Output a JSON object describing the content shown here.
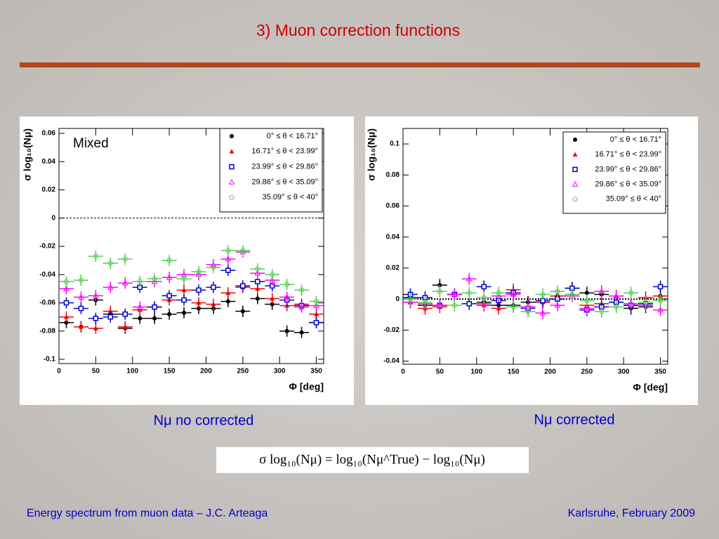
{
  "slide_title": "3) Muon correction functions",
  "captions": [
    "Nμ  no corrected",
    "Nμ corrected"
  ],
  "formula": "σ log₁₀(Nμ) = log₁₀(Nμ^True) − log₁₀(Nμ)",
  "footer": {
    "left": "Energy spectrum from muon data – J.C. Arteaga",
    "right": "Karlsruhe,  February 2009"
  },
  "chart_data": [
    {
      "type": "scatter",
      "annotation": "Mixed",
      "ylabel": "σ log₁₀(Nμ)",
      "xlabel": "Φ [deg]",
      "xlim": [
        0,
        360
      ],
      "xticks": [
        0,
        50,
        100,
        150,
        200,
        250,
        300,
        350
      ],
      "ylim": [
        -0.103,
        0.0635
      ],
      "yticks": [
        0.06,
        0.04,
        0.02,
        0,
        -0.02,
        -0.04,
        -0.06,
        -0.08,
        -0.1
      ],
      "hline": 0,
      "legend": "top-right",
      "xerr": 10,
      "yerr": 0.004,
      "x": [
        10,
        30,
        50,
        70,
        90,
        110,
        130,
        150,
        170,
        190,
        210,
        230,
        250,
        270,
        290,
        310,
        330,
        350
      ],
      "series": [
        {
          "name": "0° ≤ θ < 16.71°",
          "color": "#000000",
          "marker": "circle",
          "values": [
            -0.074,
            -0.077,
            -0.058,
            -0.068,
            -0.078,
            -0.071,
            -0.071,
            -0.068,
            -0.067,
            -0.064,
            -0.064,
            -0.059,
            -0.066,
            -0.057,
            -0.061,
            -0.08,
            -0.081,
            -0.074
          ]
        },
        {
          "name": "16.71° ≤ θ < 23.99°",
          "color": "#ee0000",
          "marker": "triangle",
          "values": [
            -0.07,
            -0.077,
            -0.078,
            -0.066,
            -0.077,
            -0.065,
            -0.063,
            -0.058,
            -0.051,
            -0.06,
            -0.061,
            -0.053,
            -0.049,
            -0.05,
            -0.057,
            -0.062,
            -0.061,
            -0.068
          ]
        },
        {
          "name": "23.99° ≤ θ < 29.86°",
          "color": "#0000cc",
          "marker": "square",
          "values": [
            -0.06,
            -0.064,
            -0.071,
            -0.07,
            -0.068,
            -0.049,
            -0.063,
            -0.055,
            -0.058,
            -0.051,
            -0.049,
            -0.037,
            -0.048,
            -0.045,
            -0.048,
            -0.058,
            -0.062,
            -0.074
          ]
        },
        {
          "name": "29.86° ≤ θ < 35.09°",
          "color": "#ff00ff",
          "marker": "open-triangle",
          "values": [
            -0.05,
            -0.056,
            -0.055,
            -0.049,
            -0.046,
            -0.063,
            -0.045,
            -0.042,
            -0.04,
            -0.04,
            -0.033,
            -0.029,
            -0.024,
            -0.039,
            -0.044,
            -0.056,
            -0.063,
            -0.062
          ]
        },
        {
          "name": "35.09° ≤ θ <   40°",
          "color": "#55cc55",
          "marker": "open-circle",
          "values": [
            -0.045,
            -0.044,
            -0.027,
            -0.032,
            -0.029,
            -0.045,
            -0.043,
            -0.03,
            -0.043,
            -0.038,
            -0.035,
            -0.023,
            -0.023,
            -0.036,
            -0.04,
            -0.047,
            -0.051,
            -0.059
          ]
        }
      ]
    },
    {
      "type": "scatter",
      "ylabel": "σ log₁₀(Nμ)",
      "xlabel": "Φ [deg]",
      "xlim": [
        0,
        360
      ],
      "xticks": [
        0,
        50,
        100,
        150,
        200,
        250,
        300,
        350
      ],
      "ylim": [
        -0.042,
        0.11
      ],
      "yticks": [
        0.1,
        0.08,
        0.06,
        0.04,
        0.02,
        0,
        -0.02,
        -0.04
      ],
      "hline": 0,
      "legend": "top-right",
      "xerr": 10,
      "yerr": 0.004,
      "x": [
        10,
        30,
        50,
        70,
        90,
        110,
        130,
        150,
        170,
        190,
        210,
        230,
        250,
        270,
        290,
        310,
        330,
        350
      ],
      "series": [
        {
          "name": "0° ≤ θ < 16.71°",
          "color": "#000000",
          "marker": "circle",
          "values": [
            0.001,
            -0.004,
            0.009,
            0.003,
            -0.003,
            -0.002,
            -0.004,
            -0.004,
            -0.002,
            -0.002,
            0.002,
            0.007,
            0.004,
            0.003,
            -0.002,
            -0.006,
            -0.005,
            0.002
          ]
        },
        {
          "name": "16.71° ≤ θ < 23.99°",
          "color": "#ee0000",
          "marker": "triangle",
          "values": [
            -0.002,
            -0.006,
            -0.005,
            0.003,
            -0.003,
            -0.004,
            -0.006,
            0.006,
            -0.005,
            -0.002,
            0.002,
            0.003,
            -0.004,
            -0.003,
            0.002,
            -0.004,
            0.001,
            0.002
          ]
        },
        {
          "name": "23.99° ≤ θ < 29.86°",
          "color": "#0000cc",
          "marker": "square",
          "values": [
            0.003,
            0.001,
            -0.004,
            0.003,
            -0.003,
            0.008,
            -0.001,
            0.004,
            -0.006,
            -0.001,
            0.0,
            0.007,
            -0.007,
            -0.005,
            -0.002,
            -0.004,
            -0.003,
            0.008
          ]
        },
        {
          "name": "29.86° ≤ θ < 35.09°",
          "color": "#ff00ff",
          "marker": "open-triangle",
          "values": [
            -0.002,
            -0.003,
            -0.004,
            0.003,
            0.013,
            -0.003,
            0.002,
            0.003,
            -0.005,
            -0.009,
            -0.004,
            0.002,
            -0.006,
            0.005,
            0.002,
            -0.003,
            -0.004,
            -0.007
          ]
        },
        {
          "name": "35.09° ≤ θ <   40°",
          "color": "#55cc55",
          "marker": "open-circle",
          "values": [
            0.0,
            -0.002,
            0.005,
            -0.004,
            0.004,
            0.001,
            0.004,
            -0.005,
            -0.008,
            0.003,
            0.005,
            0.003,
            -0.001,
            -0.008,
            -0.005,
            0.004,
            -0.002,
            -0.001
          ]
        }
      ]
    }
  ]
}
